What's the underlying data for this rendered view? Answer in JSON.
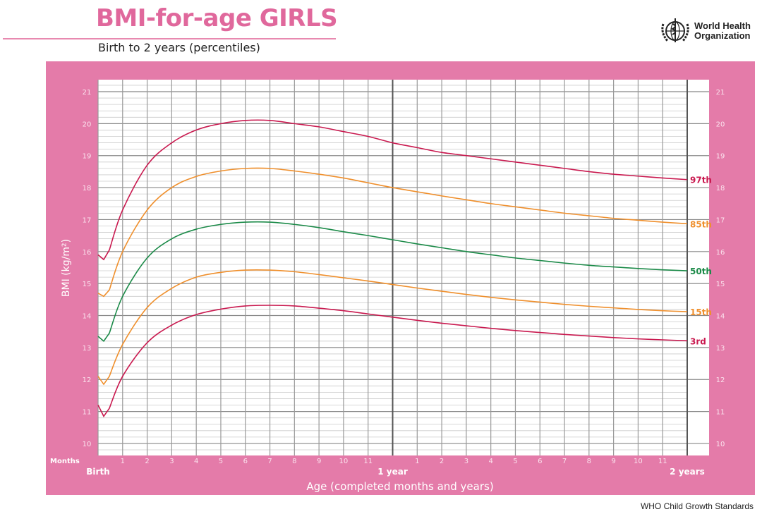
{
  "header": {
    "title": "BMI-for-age GIRLS",
    "subtitle": "Birth to 2 years (percentiles)",
    "org_line1": "World Health",
    "org_line2": "Organization",
    "logo_icon": "who-emblem-icon"
  },
  "footer": "WHO Child Growth Standards",
  "colors": {
    "panel": "#e47ba9",
    "title": "#e0689c",
    "p97": "#c9194f",
    "p85": "#ef8f2c",
    "p50": "#1b8a48",
    "p15": "#ef8f2c",
    "p3": "#c9194f"
  },
  "chart_data": {
    "type": "line",
    "title": "BMI-for-age GIRLS",
    "subtitle": "Birth to 2 years (percentiles)",
    "xlabel": "Age (completed months and years)",
    "ylabel": "BMI (kg/m²)",
    "xlim": [
      0,
      24
    ],
    "ylim": [
      10,
      21
    ],
    "grid": true,
    "months_label": "Months",
    "x_ticks": [
      {
        "m": 0,
        "label": "Birth",
        "major": true
      },
      {
        "m": 1,
        "label": "1"
      },
      {
        "m": 2,
        "label": "2"
      },
      {
        "m": 3,
        "label": "3"
      },
      {
        "m": 4,
        "label": "4"
      },
      {
        "m": 5,
        "label": "5"
      },
      {
        "m": 6,
        "label": "6"
      },
      {
        "m": 7,
        "label": "7"
      },
      {
        "m": 8,
        "label": "8"
      },
      {
        "m": 9,
        "label": "9"
      },
      {
        "m": 10,
        "label": "10"
      },
      {
        "m": 11,
        "label": "11"
      },
      {
        "m": 12,
        "label": "1 year",
        "major": true
      },
      {
        "m": 13,
        "label": "1"
      },
      {
        "m": 14,
        "label": "2"
      },
      {
        "m": 15,
        "label": "3"
      },
      {
        "m": 16,
        "label": "4"
      },
      {
        "m": 17,
        "label": "5"
      },
      {
        "m": 18,
        "label": "6"
      },
      {
        "m": 19,
        "label": "7"
      },
      {
        "m": 20,
        "label": "8"
      },
      {
        "m": 21,
        "label": "9"
      },
      {
        "m": 22,
        "label": "10"
      },
      {
        "m": 23,
        "label": "11"
      },
      {
        "m": 24,
        "label": "2 years",
        "major": true
      }
    ],
    "y_ticks": [
      "10",
      "11",
      "12",
      "13",
      "14",
      "15",
      "16",
      "17",
      "18",
      "19",
      "20",
      "21"
    ],
    "x": [
      0,
      0.23,
      0.46,
      1,
      2,
      3,
      4,
      5,
      6,
      7,
      8,
      9,
      10,
      11,
      12,
      13,
      14,
      15,
      16,
      17,
      18,
      19,
      20,
      21,
      22,
      23,
      24
    ],
    "series": [
      {
        "name": "97th",
        "color_key": "p97",
        "values": [
          15.9,
          15.75,
          16.05,
          17.3,
          18.7,
          19.4,
          19.8,
          20.0,
          20.1,
          20.1,
          20.0,
          19.9,
          19.75,
          19.6,
          19.4,
          19.25,
          19.1,
          19.0,
          18.9,
          18.8,
          18.7,
          18.6,
          18.5,
          18.42,
          18.36,
          18.3,
          18.25
        ]
      },
      {
        "name": "85th",
        "color_key": "p85",
        "values": [
          14.7,
          14.6,
          14.8,
          16.0,
          17.3,
          18.0,
          18.35,
          18.52,
          18.6,
          18.6,
          18.52,
          18.42,
          18.3,
          18.15,
          18.0,
          17.87,
          17.74,
          17.62,
          17.5,
          17.4,
          17.3,
          17.2,
          17.12,
          17.04,
          16.98,
          16.92,
          16.87
        ]
      },
      {
        "name": "50th",
        "color_key": "p50",
        "values": [
          13.35,
          13.2,
          13.45,
          14.6,
          15.8,
          16.4,
          16.7,
          16.85,
          16.92,
          16.92,
          16.85,
          16.75,
          16.62,
          16.5,
          16.37,
          16.24,
          16.12,
          16.0,
          15.9,
          15.8,
          15.72,
          15.64,
          15.57,
          15.52,
          15.47,
          15.43,
          15.4
        ]
      },
      {
        "name": "15th",
        "color_key": "p15",
        "values": [
          12.1,
          11.85,
          12.1,
          13.1,
          14.25,
          14.85,
          15.2,
          15.35,
          15.42,
          15.42,
          15.37,
          15.28,
          15.18,
          15.08,
          14.97,
          14.86,
          14.76,
          14.66,
          14.57,
          14.49,
          14.42,
          14.35,
          14.29,
          14.24,
          14.19,
          14.15,
          14.12
        ]
      },
      {
        "name": "3rd",
        "color_key": "p3",
        "values": [
          11.2,
          10.85,
          11.1,
          12.1,
          13.15,
          13.7,
          14.03,
          14.2,
          14.3,
          14.32,
          14.3,
          14.23,
          14.15,
          14.05,
          13.95,
          13.85,
          13.76,
          13.68,
          13.6,
          13.53,
          13.47,
          13.41,
          13.36,
          13.31,
          13.27,
          13.24,
          13.21
        ]
      }
    ]
  }
}
